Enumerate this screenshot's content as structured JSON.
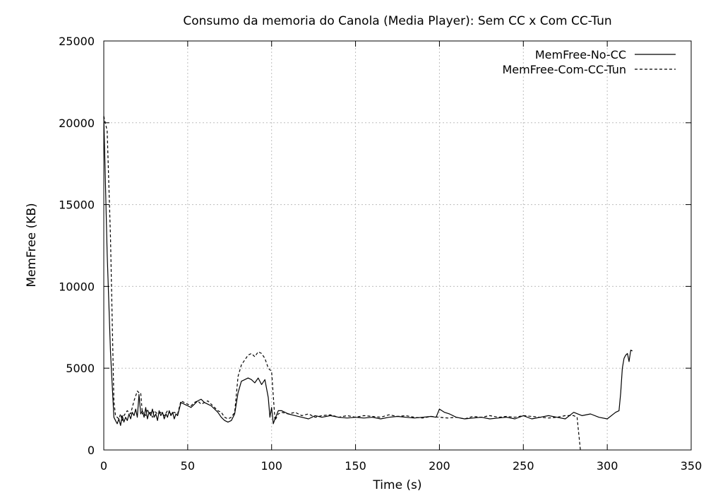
{
  "chart_data": {
    "type": "line",
    "title": "Consumo da memoria do Canola (Media Player): Sem CC x Com CC-Tun",
    "xlabel": "Time (s)",
    "ylabel": "MemFree (KB)",
    "xlim": [
      0,
      350
    ],
    "ylim": [
      0,
      25000
    ],
    "x_ticks": [
      0,
      50,
      100,
      150,
      200,
      250,
      300,
      350
    ],
    "y_ticks": [
      0,
      5000,
      10000,
      15000,
      20000,
      25000
    ],
    "x_tick_labels": [
      "0",
      "50",
      "100",
      "150",
      "200",
      "250",
      "300",
      "350"
    ],
    "y_tick_labels": [
      "0",
      "5000",
      "10000",
      "15000",
      "20000",
      "25000"
    ],
    "grid": true,
    "legend_position": "top-right",
    "series": [
      {
        "name": "MemFree-No-CC",
        "style": "solid",
        "color": "#000000",
        "x": [
          0,
          2,
          4,
          6,
          7,
          8,
          9,
          10,
          11,
          12,
          13,
          14,
          15,
          16,
          17,
          18,
          19,
          20,
          21,
          22,
          23,
          24,
          25,
          26,
          27,
          28,
          29,
          30,
          31,
          32,
          33,
          34,
          35,
          36,
          37,
          38,
          39,
          40,
          41,
          42,
          43,
          44,
          46,
          48,
          50,
          52,
          54,
          56,
          58,
          60,
          62,
          64,
          66,
          68,
          70,
          72,
          74,
          76,
          78,
          80,
          82,
          84,
          86,
          88,
          90,
          92,
          94,
          96,
          98,
          99,
          100,
          101,
          102,
          104,
          106,
          110,
          114,
          118,
          122,
          126,
          130,
          135,
          140,
          145,
          150,
          155,
          160,
          165,
          170,
          175,
          180,
          185,
          190,
          195,
          198,
          200,
          203,
          206,
          210,
          215,
          220,
          225,
          230,
          235,
          240,
          245,
          250,
          255,
          260,
          265,
          270,
          275,
          280,
          285,
          290,
          295,
          300,
          305,
          307,
          308,
          309,
          310,
          311,
          312,
          313,
          314,
          315
        ],
        "y": [
          20400,
          12000,
          6000,
          2000,
          1800,
          1600,
          1900,
          1500,
          2100,
          1700,
          2000,
          1800,
          2200,
          1900,
          2300,
          2100,
          2500,
          2000,
          3400,
          2200,
          2400,
          2000,
          2600,
          1900,
          2300,
          2100,
          2500,
          2000,
          2200,
          1800,
          2400,
          2100,
          2300,
          1900,
          2200,
          2000,
          2400,
          2100,
          2300,
          1900,
          2200,
          2100,
          2900,
          2800,
          2700,
          2600,
          2800,
          3000,
          3100,
          2900,
          2800,
          2700,
          2500,
          2300,
          2000,
          1800,
          1700,
          1800,
          2200,
          3500,
          4200,
          4300,
          4400,
          4300,
          4100,
          4400,
          4000,
          4300,
          3200,
          2000,
          2600,
          1600,
          1900,
          2400,
          2400,
          2200,
          2100,
          2000,
          1900,
          2100,
          2000,
          2100,
          2000,
          1950,
          2000,
          1950,
          2000,
          1900,
          2000,
          2050,
          2000,
          1950,
          2000,
          2050,
          2000,
          2500,
          2300,
          2200,
          2000,
          1900,
          1950,
          2000,
          1900,
          1950,
          2000,
          1900,
          2100,
          1900,
          2000,
          2100,
          2000,
          1900,
          2300,
          2100,
          2200,
          2000,
          1900,
          2300,
          2400,
          3500,
          5000,
          5600,
          5800,
          5900,
          5400,
          6100,
          6050
        ]
      },
      {
        "name": "MemFree-Com-CC-Tun",
        "style": "dashed",
        "color": "#000000",
        "x": [
          0,
          2,
          4,
          5,
          6,
          7,
          8,
          9,
          10,
          11,
          12,
          14,
          16,
          18,
          20,
          21,
          22,
          23,
          24,
          25,
          26,
          27,
          28,
          29,
          30,
          32,
          34,
          36,
          38,
          40,
          42,
          44,
          46,
          48,
          50,
          52,
          54,
          56,
          58,
          60,
          62,
          64,
          66,
          68,
          70,
          72,
          74,
          76,
          78,
          80,
          82,
          84,
          86,
          88,
          90,
          92,
          94,
          96,
          98,
          100,
          102,
          104,
          106,
          110,
          114,
          118,
          122,
          126,
          130,
          135,
          140,
          145,
          150,
          155,
          160,
          165,
          170,
          175,
          180,
          185,
          190,
          195,
          200,
          205,
          210,
          215,
          220,
          225,
          230,
          235,
          240,
          245,
          250,
          255,
          260,
          265,
          270,
          275,
          280,
          282,
          284,
          285
        ],
        "y": [
          20400,
          19500,
          13000,
          8000,
          3000,
          2100,
          2000,
          1900,
          2200,
          1800,
          2100,
          2400,
          2200,
          3000,
          3600,
          3500,
          3500,
          2200,
          2300,
          2100,
          2500,
          2200,
          2300,
          2000,
          2400,
          2200,
          2300,
          2100,
          2400,
          2200,
          2300,
          2200,
          3000,
          2900,
          2800,
          2700,
          2900,
          3000,
          2800,
          2900,
          3000,
          2800,
          2600,
          2400,
          2300,
          2000,
          1900,
          2000,
          2300,
          4500,
          5200,
          5500,
          5800,
          5900,
          5700,
          6000,
          5900,
          5600,
          5000,
          4800,
          1800,
          2200,
          2300,
          2200,
          2300,
          2100,
          2200,
          2000,
          2100,
          2150,
          2000,
          2100,
          2000,
          2100,
          2050,
          2000,
          2150,
          2050,
          2100,
          2000,
          1950,
          2050,
          2000,
          1950,
          2000,
          1900,
          2050,
          2000,
          2100,
          2000,
          2050,
          2000,
          2100,
          2050,
          2000,
          1950,
          2000,
          2100,
          2100,
          2000,
          0,
          0
        ]
      }
    ]
  }
}
